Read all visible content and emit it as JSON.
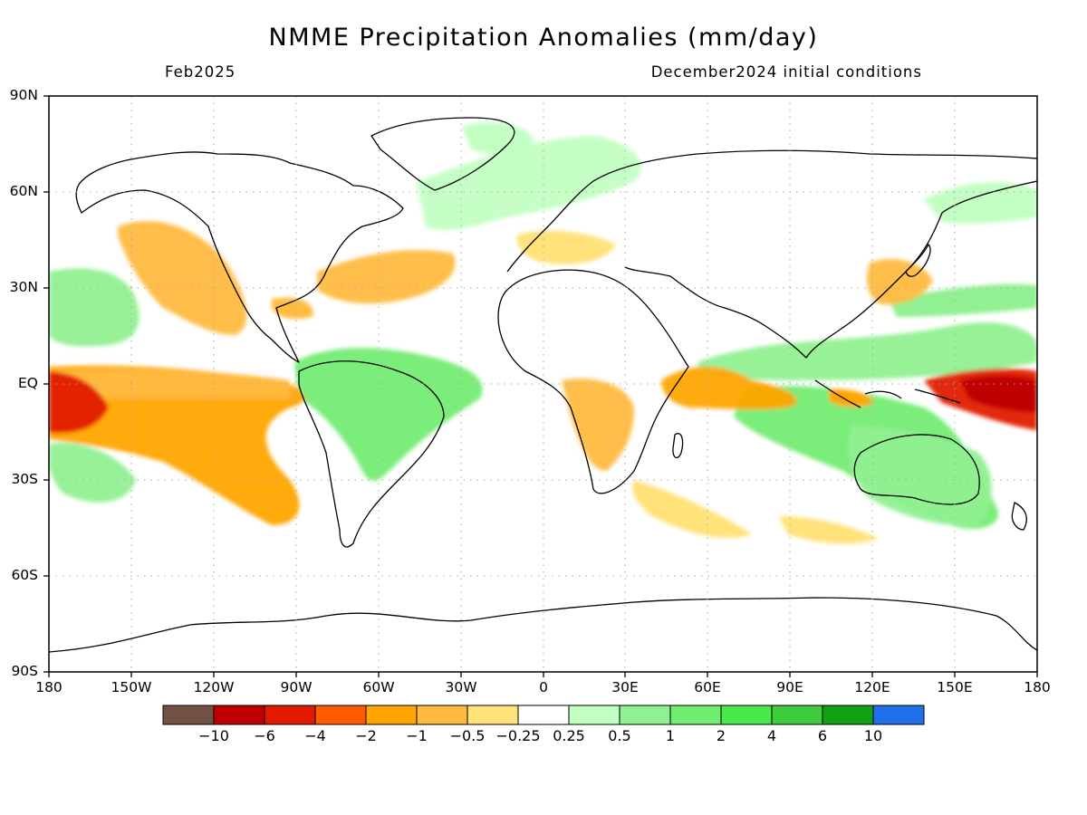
{
  "title": "NMME Precipitation Anomalies (mm/day)",
  "subtitle_left": "Feb2025",
  "subtitle_right": "December2024 initial conditions",
  "lat_labels": [
    "90N",
    "60N",
    "30N",
    "EQ",
    "30S",
    "60S",
    "90S"
  ],
  "lon_labels": [
    "180",
    "150W",
    "120W",
    "90W",
    "60W",
    "30W",
    "0",
    "30E",
    "60E",
    "90E",
    "120E",
    "150E",
    "180"
  ],
  "colorbar": {
    "tick_labels": [
      "−10",
      "−6",
      "−4",
      "−2",
      "−1",
      "−0.5",
      "−0.25",
      "0.25",
      "0.5",
      "1",
      "2",
      "4",
      "6",
      "10"
    ],
    "colors": [
      "#744f44",
      "#c00000",
      "#e21a00",
      "#ff5c00",
      "#ffa500",
      "#ffbb3f",
      "#ffe27a",
      "#ffffff",
      "#c2ffc2",
      "#91f091",
      "#72ec72",
      "#4ae84a",
      "#3ecc3e",
      "#14a014",
      "#2070ea"
    ]
  },
  "anomaly_regions": [
    {
      "name": "central-pacific-dry-core",
      "level": "-6 to -4",
      "color": "#e21a00"
    },
    {
      "name": "central-pacific-dry",
      "level": "-2 to -1",
      "color": "#ffa500"
    },
    {
      "name": "equatorial-pacific-band",
      "level": "-1 to -0.5",
      "color": "#ffbb3f"
    },
    {
      "name": "western-pacific-dry",
      "level": "-6 to -4",
      "color": "#e21a00"
    },
    {
      "name": "maritime-continent-wet",
      "level": "1 to 2",
      "color": "#72ec72"
    },
    {
      "name": "north-pacific-wet",
      "level": "0.5 to 1",
      "color": "#91f091"
    },
    {
      "name": "south-pacific-wet",
      "level": "0.5 to 1",
      "color": "#91f091"
    },
    {
      "name": "amazon-wet",
      "level": "0.5 to 2",
      "color": "#72ec72"
    },
    {
      "name": "north-atlantic-dry",
      "level": "-1 to -0.5",
      "color": "#ffbb3f"
    },
    {
      "name": "east-africa-indian-ocean-dry",
      "level": "-2 to -0.5",
      "color": "#ffa500"
    },
    {
      "name": "southern-africa-dry",
      "level": "-1 to -0.5",
      "color": "#ffbb3f"
    },
    {
      "name": "indian-ocean-wet",
      "level": "0.5 to 1",
      "color": "#91f091"
    },
    {
      "name": "australia-wet",
      "level": "0.25 to 1",
      "color": "#91f091"
    },
    {
      "name": "northern-eurasia-wet",
      "level": "0.25 to 0.5",
      "color": "#c2ffc2"
    },
    {
      "name": "us-southwest-mexico-dry",
      "level": "-1 to -0.5",
      "color": "#ffbb3f"
    },
    {
      "name": "japan-dry",
      "level": "-1 to -0.5",
      "color": "#ffbb3f"
    }
  ]
}
